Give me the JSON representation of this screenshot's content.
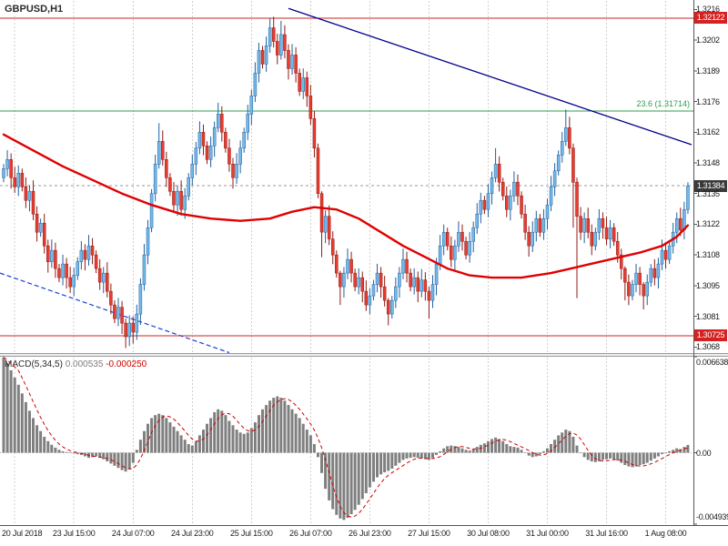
{
  "symbol_label": "GBPUSD,H1",
  "colors": {
    "up_fill": "#74b9e8",
    "up_stroke": "#1f5fa0",
    "down_fill": "#ea3b30",
    "down_stroke": "#8e1a12",
    "ma": "#e00000",
    "trend": "#00008b",
    "dashed_trend": "#1a3fd4",
    "grid": "#d0d0d0",
    "hist": "#7f7f7f",
    "signal": "#cc0000",
    "frame": "#555555",
    "badge_red": "#d42222",
    "badge_dark": "#3a3a3a",
    "fib_green": "#2e9e4f",
    "text": "#1a1a1a"
  },
  "price_pane": {
    "price_axis": {
      "top": 1.3217,
      "top_y": 8,
      "bottom": 1.3066,
      "bottom_y": 385
    },
    "y_ticks": [
      {
        "label": "1.3216",
        "value": 1.3216
      },
      {
        "label": "1.3202",
        "value": 1.32025
      },
      {
        "label": "1.3189",
        "value": 1.3189
      },
      {
        "label": "1.3176",
        "value": 1.31755
      },
      {
        "label": "1.3162",
        "value": 1.3162
      },
      {
        "label": "1.3148",
        "value": 1.31485
      },
      {
        "label": "1.3135",
        "value": 1.3135
      },
      {
        "label": "1.3122",
        "value": 1.31215
      },
      {
        "label": "1.3108",
        "value": 1.3108
      },
      {
        "label": "1.3095",
        "value": 1.30945
      },
      {
        "label": "1.3081",
        "value": 1.3081
      },
      {
        "label": "1.3068",
        "value": 1.30675
      }
    ],
    "levels": [
      {
        "name": "resistance-line",
        "value": 1.32122,
        "color": "#cc2222",
        "dash": null
      },
      {
        "name": "fib-236-line",
        "value": 1.31714,
        "color": "#2e9e4f",
        "dash": null
      },
      {
        "name": "support-line",
        "value": 1.30725,
        "color": "#cc2222",
        "dash": null
      },
      {
        "name": "bid-line",
        "value": 1.31384,
        "color": "#9a9a9a",
        "dash": "3,3"
      }
    ],
    "fib_label": {
      "text": "23.6 (1.31714)",
      "value": 1.31714
    },
    "badges": [
      {
        "name": "price-badge-resistance",
        "label": "1.32122",
        "value": 1.32122,
        "bg": "#d42222"
      },
      {
        "name": "price-badge-current",
        "label": "1.31384",
        "value": 1.31384,
        "bg": "#3a3a3a"
      },
      {
        "name": "price-badge-support",
        "label": "1.30725",
        "value": 1.30725,
        "bg": "#d42222"
      }
    ]
  },
  "chart_data": {
    "type": "candlestick",
    "symbol": "GBPUSD",
    "timeframe": "H1",
    "title": "GBPUSD,H1",
    "x_labels": [
      {
        "label": "20 Jul 2018",
        "i": 3
      },
      {
        "label": "23 Jul 15:00",
        "i": 19
      },
      {
        "label": "24 Jul 07:00",
        "i": 35
      },
      {
        "label": "24 Jul 23:00",
        "i": 51
      },
      {
        "label": "25 Jul 15:00",
        "i": 67
      },
      {
        "label": "26 Jul 07:00",
        "i": 83
      },
      {
        "label": "26 Jul 23:00",
        "i": 99
      },
      {
        "label": "27 Jul 15:00",
        "i": 115
      },
      {
        "label": "30 Jul 08:00",
        "i": 131
      },
      {
        "label": "31 Jul 00:00",
        "i": 147
      },
      {
        "label": "31 Jul 16:00",
        "i": 163
      },
      {
        "label": "1 Aug 08:00",
        "i": 179
      }
    ],
    "first_open": 1.3142,
    "closes": [
      1.3146,
      1.315,
      1.3142,
      1.3138,
      1.3144,
      1.3138,
      1.3132,
      1.3136,
      1.3126,
      1.3118,
      1.3122,
      1.3112,
      1.3105,
      1.311,
      1.3102,
      1.3098,
      1.3104,
      1.3098,
      1.3094,
      1.3099,
      1.3105,
      1.311,
      1.3106,
      1.3112,
      1.3108,
      1.3102,
      1.3096,
      1.31,
      1.3092,
      1.3086,
      1.308,
      1.3085,
      1.3078,
      1.3072,
      1.3078,
      1.3074,
      1.3082,
      1.3095,
      1.3108,
      1.312,
      1.3135,
      1.3148,
      1.3158,
      1.315,
      1.3142,
      1.3136,
      1.313,
      1.3136,
      1.3128,
      1.3134,
      1.3142,
      1.3148,
      1.3155,
      1.3162,
      1.3156,
      1.315,
      1.3156,
      1.3164,
      1.317,
      1.3162,
      1.3155,
      1.3148,
      1.3142,
      1.3148,
      1.3155,
      1.3162,
      1.317,
      1.3178,
      1.3188,
      1.3198,
      1.3192,
      1.32,
      1.3208,
      1.3202,
      1.3196,
      1.3205,
      1.3198,
      1.319,
      1.3196,
      1.3188,
      1.318,
      1.3186,
      1.3178,
      1.3168,
      1.3155,
      1.3135,
      1.3118,
      1.3125,
      1.3115,
      1.3108,
      1.31,
      1.3094,
      1.31,
      1.3106,
      1.31,
      1.3094,
      1.3098,
      1.3092,
      1.3086,
      1.309,
      1.3095,
      1.31,
      1.3094,
      1.3088,
      1.3082,
      1.3088,
      1.3094,
      1.31,
      1.3106,
      1.31,
      1.3094,
      1.3098,
      1.3092,
      1.3097,
      1.3092,
      1.3088,
      1.3095,
      1.3104,
      1.3112,
      1.3118,
      1.3112,
      1.3106,
      1.3112,
      1.3118,
      1.3114,
      1.3108,
      1.3114,
      1.312,
      1.3126,
      1.3132,
      1.3128,
      1.3135,
      1.3142,
      1.3148,
      1.314,
      1.3134,
      1.3128,
      1.3134,
      1.314,
      1.3134,
      1.3126,
      1.3118,
      1.3112,
      1.3118,
      1.3124,
      1.3118,
      1.3124,
      1.313,
      1.3138,
      1.3145,
      1.3152,
      1.3158,
      1.3164,
      1.3155,
      1.314,
      1.3125,
      1.3118,
      1.3124,
      1.3118,
      1.3112,
      1.3118,
      1.3124,
      1.312,
      1.3115,
      1.312,
      1.3114,
      1.3108,
      1.3102,
      1.3096,
      1.309,
      1.3095,
      1.31,
      1.3095,
      1.309,
      1.3096,
      1.3102,
      1.3098,
      1.3104,
      1.311,
      1.3106,
      1.3112,
      1.3118,
      1.3124,
      1.3119,
      1.3128,
      1.31384
    ],
    "wick_overrides": {
      "33": [
        1.308,
        1.3067
      ],
      "35": [
        1.3081,
        1.3069
      ],
      "42": [
        1.3166,
        1.3146
      ],
      "58": [
        1.3175,
        1.3162
      ],
      "72": [
        1.32122,
        1.3197
      ],
      "75": [
        1.3211,
        1.3194
      ],
      "86": [
        1.3136,
        1.3107
      ],
      "91": [
        1.3101,
        1.3086
      ],
      "104": [
        1.3089,
        1.3077
      ],
      "115": [
        1.3094,
        1.308
      ],
      "133": [
        1.3155,
        1.314
      ],
      "152": [
        1.3172,
        1.3156
      ],
      "154": [
        1.3157,
        1.312
      ],
      "155": [
        1.3142,
        1.3089
      ],
      "168": [
        1.3103,
        1.3088
      ],
      "173": [
        1.3096,
        1.3084
      ],
      "185": [
        1.314,
        1.3126
      ]
    },
    "ma": {
      "color": "#e00000",
      "points": [
        [
          0,
          1.3161
        ],
        [
          8,
          1.3154
        ],
        [
          16,
          1.3147
        ],
        [
          24,
          1.3141
        ],
        [
          32,
          1.3135
        ],
        [
          40,
          1.313
        ],
        [
          48,
          1.3126
        ],
        [
          56,
          1.3124
        ],
        [
          64,
          1.3123
        ],
        [
          72,
          1.3124
        ],
        [
          78,
          1.3127
        ],
        [
          84,
          1.3129
        ],
        [
          90,
          1.3128
        ],
        [
          96,
          1.3124
        ],
        [
          102,
          1.3118
        ],
        [
          108,
          1.3112
        ],
        [
          114,
          1.3107
        ],
        [
          120,
          1.3102
        ],
        [
          126,
          1.3099
        ],
        [
          132,
          1.3098
        ],
        [
          140,
          1.3098
        ],
        [
          148,
          1.31
        ],
        [
          156,
          1.3103
        ],
        [
          164,
          1.3106
        ],
        [
          172,
          1.3109
        ],
        [
          178,
          1.3112
        ],
        [
          182,
          1.3116
        ],
        [
          185,
          1.3121
        ]
      ]
    },
    "trendline": {
      "from": [
        77,
        1.32165
      ],
      "to": [
        186,
        1.31565
      ]
    },
    "dashed_line": {
      "from": [
        0,
        1.31
      ],
      "to": [
        61,
        1.3065
      ]
    },
    "macd": {
      "label": "MACD(5,34,5)",
      "main_value": "0.000535",
      "signal_value": "-0.000250",
      "axis_labels": {
        "max": "0.006638",
        "zero": "0.00",
        "min": "-0.004939"
      },
      "max": 6638,
      "min": -4939,
      "unit": 1e-06,
      "hist": [
        6600,
        6200,
        5700,
        5200,
        4700,
        4100,
        3500,
        2900,
        2400,
        1900,
        1500,
        1100,
        800,
        550,
        350,
        200,
        100,
        50,
        0,
        -50,
        -100,
        -150,
        -250,
        -350,
        -300,
        -250,
        -350,
        -450,
        -600,
        -750,
        -900,
        -1050,
        -1200,
        -1300,
        -1150,
        -700,
        200,
        900,
        1500,
        2000,
        2400,
        2600,
        2700,
        2600,
        2400,
        2100,
        1800,
        1500,
        1200,
        900,
        600,
        500,
        800,
        1200,
        1600,
        2000,
        2400,
        2800,
        3000,
        2900,
        2600,
        2200,
        1900,
        1600,
        1400,
        1300,
        1400,
        1700,
        2100,
        2600,
        3000,
        3300,
        3600,
        3800,
        3900,
        3800,
        3600,
        3300,
        3000,
        2700,
        2400,
        2000,
        1600,
        1200,
        600,
        -300,
        -1400,
        -2500,
        -3300,
        -3900,
        -4300,
        -4550,
        -4650,
        -4500,
        -4250,
        -3950,
        -3600,
        -3200,
        -2800,
        -2400,
        -2000,
        -1700,
        -1500,
        -1350,
        -1250,
        -1100,
        -900,
        -700,
        -500,
        -400,
        -350,
        -300,
        -350,
        -400,
        -450,
        -500,
        -350,
        -150,
        100,
        300,
        450,
        500,
        450,
        400,
        300,
        200,
        150,
        250,
        400,
        550,
        650,
        800,
        950,
        1050,
        950,
        800,
        600,
        450,
        400,
        350,
        200,
        0,
        -200,
        -300,
        -250,
        -100,
        100,
        300,
        600,
        900,
        1200,
        1400,
        1600,
        1500,
        1100,
        500,
        0,
        -300,
        -500,
        -600,
        -650,
        -600,
        -500,
        -450,
        -400,
        -450,
        -550,
        -700,
        -850,
        -950,
        -1000,
        -950,
        -850,
        -800,
        -700,
        -550,
        -400,
        -250,
        -100,
        0,
        100,
        200,
        300,
        250,
        400,
        535
      ]
    }
  }
}
